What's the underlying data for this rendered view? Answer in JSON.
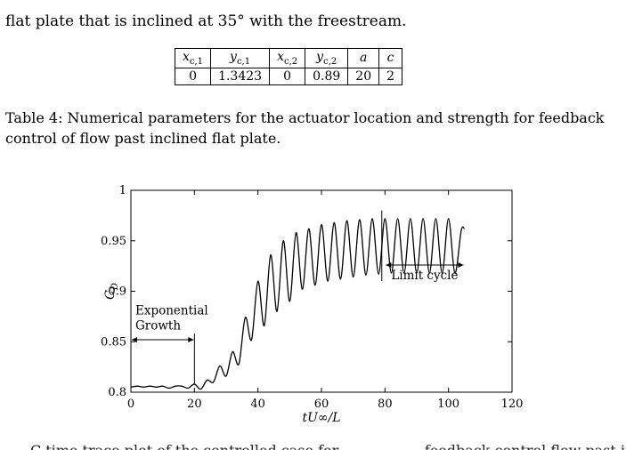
{
  "page": {
    "top_line_fragment": "flat plate that is inclined at 35° with the freestream.",
    "bottom_line_fragment": "C  time trace plot of the controlled case for . . . . . . . . . feedback control flow past inclined"
  },
  "table": {
    "headers": [
      "x_c,1",
      "y_c,1",
      "x_c,2",
      "y_c,2",
      "a",
      "c"
    ],
    "header_display": [
      {
        "base": "x",
        "sub": "c,1"
      },
      {
        "base": "y",
        "sub": "c,1"
      },
      {
        "base": "x",
        "sub": "c,2"
      },
      {
        "base": "y",
        "sub": "c,2"
      },
      {
        "base": "a",
        "sub": ""
      },
      {
        "base": "c",
        "sub": ""
      }
    ],
    "row": [
      "0",
      "1.3423",
      "0",
      "0.89",
      "20",
      "2"
    ]
  },
  "caption": {
    "line1": "Table 4: Numerical parameters for the actuator location and strength for feedback",
    "line2": "control of flow past inclined flat plate."
  },
  "chart_data": {
    "type": "line",
    "xlabel": "tU∞/L",
    "ylabel": "C_D",
    "xlim": [
      0,
      120
    ],
    "ylim": [
      0.8,
      1.0
    ],
    "x_ticks": [
      "0",
      "20",
      "40",
      "60",
      "80",
      "100",
      "120"
    ],
    "y_ticks": [
      "0.8",
      "0.85",
      "0.9",
      "0.95",
      "1"
    ],
    "grid": false,
    "legend": "none",
    "annotations": [
      {
        "text_line1": "Exponential",
        "text_line2": "Growth",
        "span_x": [
          0,
          20
        ],
        "y": 0.852
      },
      {
        "text": "Limit cycle",
        "span_x": [
          80,
          105
        ],
        "y": 0.926
      }
    ],
    "series": [
      {
        "x": [
          0,
          2,
          4,
          6,
          8,
          10,
          12,
          14,
          16,
          18,
          20,
          22,
          24,
          26,
          28,
          30,
          32,
          34,
          36,
          38,
          40,
          42,
          44,
          46,
          48,
          50,
          52,
          54,
          56,
          58,
          60,
          62,
          64,
          66,
          68,
          70,
          72,
          74,
          76,
          78,
          80,
          82,
          84,
          86,
          88,
          90,
          92,
          94,
          96,
          98,
          100,
          102,
          104,
          105
        ],
        "y": [
          0.805,
          0.806,
          0.805,
          0.806,
          0.805,
          0.806,
          0.804,
          0.806,
          0.806,
          0.804,
          0.808,
          0.803,
          0.812,
          0.81,
          0.826,
          0.816,
          0.84,
          0.828,
          0.874,
          0.852,
          0.91,
          0.866,
          0.936,
          0.88,
          0.95,
          0.89,
          0.958,
          0.902,
          0.962,
          0.906,
          0.966,
          0.91,
          0.968,
          0.912,
          0.97,
          0.914,
          0.971,
          0.916,
          0.972,
          0.917,
          0.972,
          0.918,
          0.972,
          0.918,
          0.972,
          0.918,
          0.972,
          0.918,
          0.972,
          0.918,
          0.972,
          0.918,
          0.96,
          0.962
        ]
      }
    ]
  }
}
